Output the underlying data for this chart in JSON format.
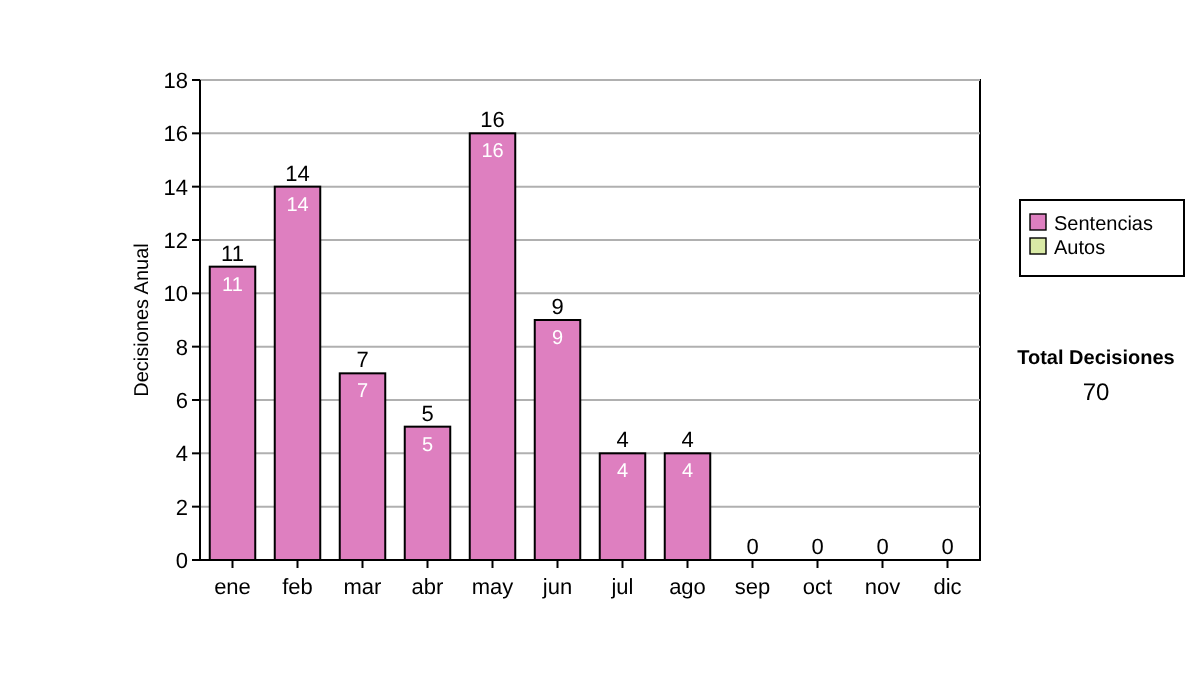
{
  "chart_data": {
    "type": "bar",
    "ylabel": "Decisiones Anual",
    "categories": [
      "ene",
      "feb",
      "mar",
      "abr",
      "may",
      "jun",
      "jul",
      "ago",
      "sep",
      "oct",
      "nov",
      "dic"
    ],
    "stacked": true,
    "series": [
      {
        "name": "Sentencias",
        "color": "#de7fc0",
        "values": [
          11,
          14,
          7,
          5,
          16,
          9,
          4,
          4,
          0,
          0,
          0,
          0
        ],
        "value_labels": [
          "11",
          "14",
          "7",
          "5",
          "16",
          "9",
          "4",
          "4",
          null,
          null,
          null,
          null
        ]
      },
      {
        "name": "Autos",
        "color": "#d9eaa6",
        "values": [
          0,
          0,
          0,
          0,
          0,
          0,
          0,
          0,
          0,
          0,
          0,
          0
        ]
      }
    ],
    "totals": [
      "11",
      "14",
      "7",
      "5",
      "16",
      "9",
      "4",
      "4",
      "0",
      "0",
      "0",
      "0"
    ],
    "ylim": [
      0,
      18
    ],
    "yticks": [
      0,
      2,
      4,
      6,
      8,
      10,
      12,
      14,
      16,
      18
    ],
    "grid": "y",
    "legend": "right",
    "annotations": [
      "Total Decisiones",
      "70"
    ]
  }
}
